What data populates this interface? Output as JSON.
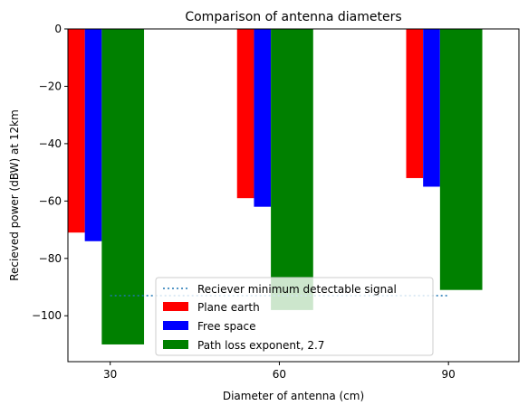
{
  "chart_data": {
    "type": "bar",
    "title": "Comparison of antenna diameters",
    "xlabel": "Diameter of antenna (cm)",
    "ylabel": "Recieved power (dBW) at 12km",
    "categories": [
      "30",
      "60",
      "90"
    ],
    "x": [
      30,
      60,
      90
    ],
    "ylim": [
      -116,
      0
    ],
    "xlim": [
      22.5,
      102.5
    ],
    "yticks": [
      0,
      -20,
      -40,
      -60,
      -80,
      -100
    ],
    "ytick_labels": [
      "0",
      "−20",
      "−40",
      "−60",
      "−80",
      "−100"
    ],
    "series": [
      {
        "name": "Plane earth",
        "color": "#ff0000",
        "values": [
          -71,
          -59,
          -52
        ],
        "width_cm": 3
      },
      {
        "name": "Free space",
        "color": "#0000ff",
        "values": [
          -74,
          -62,
          -55
        ],
        "width_cm": 3
      },
      {
        "name": "Path loss exponent, 2.7",
        "color": "#008000",
        "values": [
          -110,
          -98,
          -91
        ],
        "width_cm": 7.5
      }
    ],
    "reference_line": {
      "name": "Reciever minimum detectable signal",
      "value": -93,
      "x_range": [
        30,
        90
      ],
      "style": "dotted",
      "color": "#1f77b4"
    },
    "legend_position": "lower-center",
    "grid": false
  }
}
